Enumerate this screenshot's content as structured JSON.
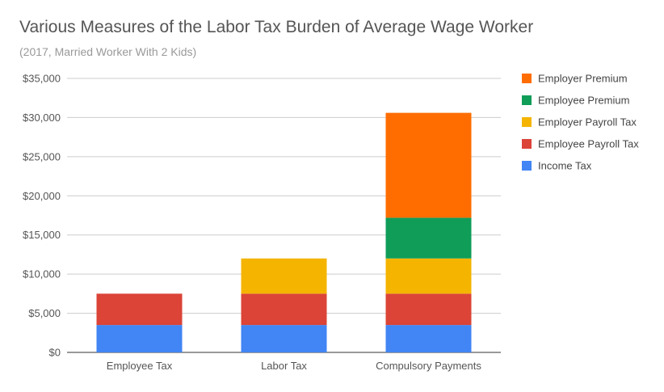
{
  "chart_data": {
    "type": "bar",
    "stacked": true,
    "title": "Various Measures of the Labor Tax Burden of Average Wage Worker",
    "subtitle": "(2017, Married Worker With 2 Kids)",
    "categories": [
      "Employee Tax",
      "Labor Tax",
      "Compulsory Payments"
    ],
    "series": [
      {
        "name": "Income Tax",
        "color": "#4285f4",
        "values": [
          3500,
          3500,
          3500
        ]
      },
      {
        "name": "Employee Payroll Tax",
        "color": "#db4437",
        "values": [
          4000,
          4000,
          4000
        ]
      },
      {
        "name": "Employer Payroll Tax",
        "color": "#f4b400",
        "values": [
          0,
          4500,
          4500
        ]
      },
      {
        "name": "Employee Premium",
        "color": "#0f9d58",
        "values": [
          0,
          0,
          5200
        ]
      },
      {
        "name": "Employer Premium",
        "color": "#ff6d00",
        "values": [
          0,
          0,
          13400
        ]
      }
    ],
    "ylim": [
      0,
      35000
    ],
    "yticks": [
      0,
      5000,
      10000,
      15000,
      20000,
      25000,
      30000,
      35000
    ],
    "ytick_labels": [
      "$0",
      "$5,000",
      "$10,000",
      "$15,000",
      "$20,000",
      "$25,000",
      "$30,000",
      "$35,000"
    ],
    "grid": true,
    "legend_position": "right"
  }
}
